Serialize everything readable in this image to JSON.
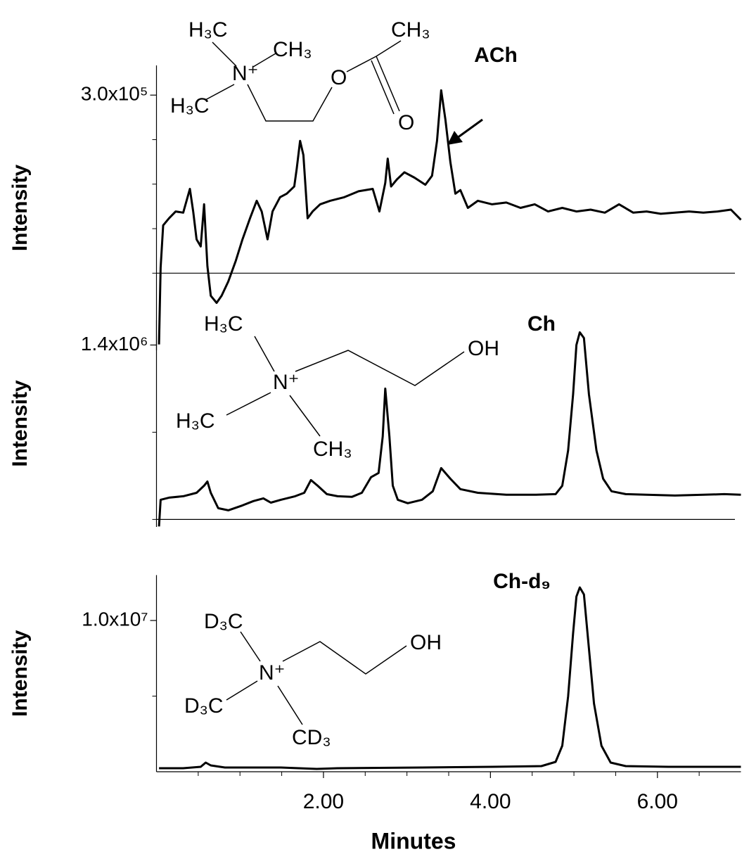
{
  "chart_data": [
    {
      "type": "line",
      "label": "ACh",
      "ylabel": "Intensity",
      "color": "#000000",
      "xlim": [
        0,
        7
      ],
      "ylim": [
        -130000,
        350000
      ],
      "yticks": [
        {
          "value": 300000,
          "label": "3.0x10⁵"
        }
      ],
      "yminorticks": [
        0,
        75000,
        150000,
        225000
      ],
      "structure": [
        "H₃C",
        "CH₃",
        "N⁺",
        "H₃C",
        "O",
        "CH₃",
        "O"
      ],
      "x": [
        0.03,
        0.05,
        0.08,
        0.15,
        0.23,
        0.32,
        0.4,
        0.44,
        0.48,
        0.53,
        0.57,
        0.61,
        0.65,
        0.72,
        0.78,
        0.86,
        0.95,
        1.03,
        1.12,
        1.2,
        1.26,
        1.33,
        1.39,
        1.48,
        1.56,
        1.65,
        1.68,
        1.72,
        1.76,
        1.81,
        1.87,
        1.96,
        2.08,
        2.25,
        2.42,
        2.59,
        2.67,
        2.74,
        2.77,
        2.81,
        2.88,
        2.97,
        3.09,
        3.22,
        3.3,
        3.36,
        3.41,
        3.46,
        3.52,
        3.58,
        3.64,
        3.73,
        3.85,
        4.02,
        4.19,
        4.36,
        4.53,
        4.69,
        4.86,
        5.03,
        5.2,
        5.37,
        5.54,
        5.71,
        5.87,
        6.04,
        6.21,
        6.38,
        6.55,
        6.72,
        6.88,
        7.0
      ],
      "values": [
        -120000,
        9500,
        80600,
        92500,
        104000,
        102000,
        142000,
        104000,
        57000,
        45000,
        116000,
        12000,
        -38000,
        -50000,
        -38000,
        -14000,
        21000,
        57000,
        92500,
        122000,
        104000,
        57000,
        104000,
        128000,
        134000,
        146000,
        176000,
        223000,
        199000,
        92500,
        104000,
        116000,
        122000,
        128000,
        138000,
        142000,
        104000,
        152000,
        193000,
        146000,
        158000,
        170000,
        161000,
        149000,
        164000,
        223000,
        308000,
        259000,
        187000,
        134000,
        140000,
        110000,
        122000,
        116000,
        119000,
        110000,
        116000,
        104000,
        110000,
        104000,
        107000,
        102000,
        116000,
        102000,
        104000,
        100000,
        102000,
        104000,
        102000,
        104000,
        107000,
        90000
      ]
    },
    {
      "type": "line",
      "label": "Ch",
      "ylabel": "Intensity",
      "color": "#000000",
      "xlim": [
        0,
        7
      ],
      "ylim": [
        -60000,
        1600000
      ],
      "yticks": [
        {
          "value": 1400000,
          "label": "1.4x10⁶"
        }
      ],
      "yminorticks": [
        0,
        700000
      ],
      "structure": [
        "H₃C",
        "N⁺",
        "OH",
        "H₃C",
        "CH₃"
      ],
      "x": [
        0.03,
        0.05,
        0.15,
        0.32,
        0.48,
        0.57,
        0.61,
        0.65,
        0.74,
        0.86,
        1.03,
        1.16,
        1.28,
        1.37,
        1.49,
        1.66,
        1.77,
        1.85,
        1.93,
        2.04,
        2.17,
        2.34,
        2.46,
        2.57,
        2.66,
        2.71,
        2.74,
        2.79,
        2.83,
        2.89,
        3.01,
        3.18,
        3.31,
        3.41,
        3.52,
        3.64,
        3.85,
        4.19,
        4.53,
        4.78,
        4.86,
        4.93,
        4.99,
        5.03,
        5.07,
        5.12,
        5.18,
        5.27,
        5.35,
        5.45,
        5.62,
        5.87,
        6.21,
        6.55,
        6.8,
        7.0
      ],
      "values": [
        -56000,
        158000,
        175000,
        186000,
        214000,
        271000,
        305000,
        214000,
        90000,
        73000,
        113000,
        147000,
        169000,
        135000,
        158000,
        186000,
        214000,
        316000,
        271000,
        203000,
        186000,
        181000,
        214000,
        339000,
        373000,
        666000,
        1050000,
        666000,
        271000,
        158000,
        130000,
        158000,
        226000,
        412000,
        327000,
        243000,
        214000,
        198000,
        198000,
        203000,
        271000,
        553000,
        1005000,
        1400000,
        1502000,
        1456000,
        1005000,
        553000,
        327000,
        226000,
        203000,
        198000,
        192000,
        198000,
        203000,
        198000
      ]
    },
    {
      "type": "line",
      "label": "Ch-d₉",
      "ylabel": "Intensity",
      "xlabel": "Minutes",
      "color": "#000000",
      "xlim": [
        0,
        7
      ],
      "ylim": [
        0,
        13000000
      ],
      "yticks": [
        {
          "value": 10000000,
          "label": "1.0x10⁷"
        }
      ],
      "yminorticks": [
        5000000
      ],
      "xticks": [
        {
          "value": 2,
          "label": "2.00"
        },
        {
          "value": 4,
          "label": "4.00"
        },
        {
          "value": 6,
          "label": "6.00"
        }
      ],
      "xminorticks": [
        0.5,
        1,
        1.5,
        2.5,
        3,
        3.5,
        4.5,
        5,
        5.5,
        6.5
      ],
      "structure": [
        "D₃C",
        "N⁺",
        "OH",
        "D₃C",
        "CD₃"
      ],
      "x": [
        0.03,
        0.32,
        0.53,
        0.59,
        0.65,
        0.82,
        1.49,
        1.92,
        2.17,
        3.18,
        4.02,
        4.61,
        4.78,
        4.86,
        4.93,
        4.99,
        5.03,
        5.07,
        5.12,
        5.17,
        5.24,
        5.33,
        5.44,
        5.62,
        6.13,
        7.0
      ],
      "values": [
        233000,
        233000,
        326000,
        605000,
        419000,
        279000,
        279000,
        186000,
        233000,
        279000,
        326000,
        372000,
        651000,
        1721000,
        4977000,
        9163000,
        11581000,
        12186000,
        11721000,
        8698000,
        4512000,
        1721000,
        605000,
        372000,
        326000,
        326000
      ]
    }
  ]
}
